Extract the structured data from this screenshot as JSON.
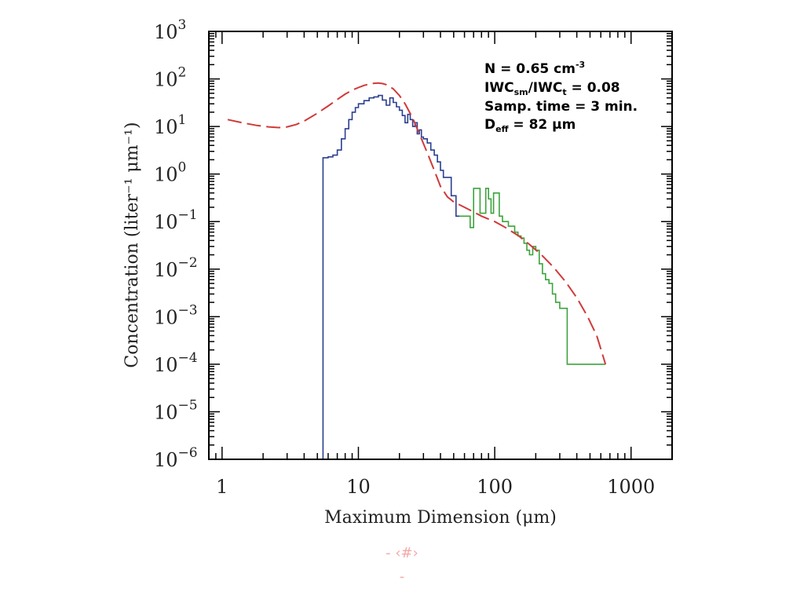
{
  "chart_data": {
    "type": "line",
    "xlabel": "Maximum Dimension (μm)",
    "ylabel": "Concentration (liter⁻¹ μm⁻¹)",
    "xscale": "log",
    "yscale": "log",
    "xlim": [
      0.8,
      2000
    ],
    "ylim": [
      1e-06,
      1000
    ],
    "grid": false,
    "x_ticks": [
      {
        "value": 1,
        "label": "1"
      },
      {
        "value": 10,
        "label": "10"
      },
      {
        "value": 100,
        "label": "100"
      },
      {
        "value": 1000,
        "label": "1000"
      }
    ],
    "y_ticks": [
      {
        "value": 1000,
        "base": "10",
        "exp": "3"
      },
      {
        "value": 100,
        "base": "10",
        "exp": "2"
      },
      {
        "value": 10,
        "base": "10",
        "exp": "1"
      },
      {
        "value": 1,
        "base": "10",
        "exp": "0"
      },
      {
        "value": 0.1,
        "base": "10",
        "exp": "−1"
      },
      {
        "value": 0.01,
        "base": "10",
        "exp": "−2"
      },
      {
        "value": 0.001,
        "base": "10",
        "exp": "−3"
      },
      {
        "value": 0.0001,
        "base": "10",
        "exp": "−4"
      },
      {
        "value": 1e-05,
        "base": "10",
        "exp": "−5"
      },
      {
        "value": 1e-06,
        "base": "10",
        "exp": "−6"
      }
    ],
    "series": [
      {
        "color": "#2b3f8f",
        "style": "step",
        "x": [
          0.8,
          4.8,
          5.5,
          6.0,
          6.5,
          7.0,
          7.5,
          8.0,
          8.5,
          9.0,
          9.5,
          10.0,
          11.0,
          12.0,
          13.0,
          14.0,
          15.0,
          16.0,
          17.0,
          18.0,
          19.0,
          20.0,
          21.0,
          22.0,
          23.0,
          24.0,
          25.0,
          26.0,
          27.0,
          28.0,
          29.0,
          30.0,
          32.0,
          34.0,
          36.0,
          38.0,
          40.0,
          42.0,
          45.0,
          48.0,
          52.0,
          55.0
        ],
        "y": [
          1e-06,
          1e-06,
          2.2,
          2.3,
          2.5,
          3.2,
          5.5,
          9.0,
          14.0,
          20.0,
          25.0,
          30.0,
          35.0,
          40.0,
          42.0,
          45.0,
          36.0,
          28.0,
          40.0,
          32.0,
          26.0,
          22.0,
          17.0,
          12.0,
          18.0,
          14.0,
          10.0,
          12.0,
          7.0,
          8.5,
          6.0,
          5.5,
          4.5,
          3.2,
          2.5,
          1.8,
          1.2,
          0.85,
          0.85,
          0.35,
          0.13,
          0.13
        ]
      },
      {
        "color": "#3ca33c",
        "style": "step",
        "x": [
          55.0,
          62.0,
          66.0,
          70.0,
          74.0,
          78.0,
          82.0,
          86.0,
          90.0,
          94.0,
          98.0,
          102.0,
          108.0,
          114.0,
          120.0,
          126.0,
          133.0,
          140.0,
          148.0,
          156.0,
          164.0,
          172.0,
          180.0,
          190.0,
          200.0,
          212.0,
          224.0,
          236.0,
          250.0,
          265.0,
          280.0,
          300.0,
          320.0,
          340.0,
          650.0
        ],
        "y": [
          0.13,
          0.13,
          0.075,
          0.5,
          0.5,
          0.15,
          0.15,
          0.5,
          0.3,
          0.15,
          0.4,
          0.4,
          0.13,
          0.1,
          0.1,
          0.08,
          0.08,
          0.06,
          0.05,
          0.045,
          0.035,
          0.025,
          0.02,
          0.03,
          0.025,
          0.013,
          0.008,
          0.006,
          0.005,
          0.003,
          0.002,
          0.0015,
          0.0015,
          0.0001,
          0.0001
        ]
      },
      {
        "color": "#d03a3a",
        "style": "dashed",
        "x": [
          1.1,
          1.4,
          1.8,
          2.2,
          2.6,
          3.0,
          3.5,
          4.0,
          5.0,
          6.0,
          7.0,
          8.0,
          9.0,
          10.0,
          11.0,
          12.0,
          13.0,
          14.0,
          15.0,
          16.0,
          18.0,
          20.0,
          22.0,
          25.0,
          28.0,
          32.0,
          36.0,
          40.0,
          45.0,
          50.0,
          60.0,
          70.0,
          80.0,
          100.0,
          120.0,
          150.0,
          180.0,
          220.0,
          270.0,
          330.0,
          400.0,
          480.0,
          560.0,
          650.0
        ],
        "y": [
          14.0,
          12.0,
          10.5,
          9.8,
          9.5,
          9.8,
          11.0,
          13.0,
          19.0,
          27.0,
          37.0,
          48.0,
          58.0,
          66.0,
          73.0,
          78.0,
          81.0,
          82.0,
          80.0,
          76.0,
          62.0,
          45.0,
          30.0,
          15.0,
          7.0,
          2.8,
          1.2,
          0.55,
          0.33,
          0.26,
          0.2,
          0.16,
          0.13,
          0.1,
          0.075,
          0.05,
          0.033,
          0.02,
          0.011,
          0.0055,
          0.0025,
          0.001,
          0.0004,
          0.0001
        ]
      }
    ],
    "annotation": {
      "line1": "N = 0.65 cm",
      "line1_sup": "-3",
      "line2_a": "IWC",
      "line2_a_sub": "sm",
      "line2_b": "/IWC",
      "line2_b_sub": "t",
      "line2_c": " = 0.08",
      "line3": "Samp. time = 3 min.",
      "line4_a": "D",
      "line4_a_sub": "eff",
      "line4_b": " = 82 μm"
    }
  },
  "footer": {
    "line1": "- ‹#›",
    "line2": "-"
  },
  "colors": {
    "axes": "#000000",
    "footer": "#f4a9a8"
  }
}
